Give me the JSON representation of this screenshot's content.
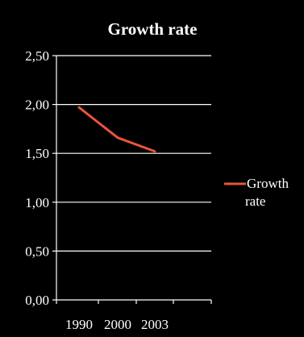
{
  "chart_data": {
    "type": "line",
    "title": "Growth rate",
    "categories": [
      "1990",
      "2000",
      "2003"
    ],
    "series": [
      {
        "name": "Growth rate",
        "values": [
          1.97,
          1.66,
          1.52
        ],
        "color": "#e8553b"
      }
    ],
    "ylim": [
      0,
      2.5
    ],
    "yticks": [
      "0,00",
      "0,50",
      "1,00",
      "1,50",
      "2,00",
      "2,50"
    ],
    "ytick_values": [
      0,
      0.5,
      1.0,
      1.5,
      2.0,
      2.5
    ],
    "grid": true,
    "legend": {
      "placement": "right",
      "label_lines": [
        "Growth",
        "rate"
      ]
    },
    "colors": {
      "background": "#000000",
      "axis": "#ffffff",
      "grid": "#ffffff",
      "text": "#ffffff"
    }
  }
}
